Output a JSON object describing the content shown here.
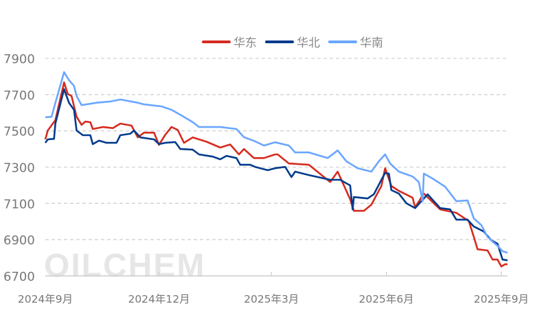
{
  "watermark": "OILCHEM",
  "chart_data": {
    "type": "line",
    "title": "",
    "xlabel": "",
    "ylabel": "",
    "ylim": [
      6700,
      7900
    ],
    "yticks": [
      6700,
      6900,
      7100,
      7300,
      7500,
      7700,
      7900
    ],
    "ytick_labels": [
      "6700",
      "6900",
      "7100",
      "7300",
      "7500",
      "7700",
      "7900"
    ],
    "xlim": [
      "2024-09-01",
      "2025-09-06"
    ],
    "xticks": [
      "2024-09-01",
      "2024-12-01",
      "2025-03-01",
      "2025-06-01",
      "2025-09-01"
    ],
    "xtick_labels": [
      "2024年9月",
      "2024年12月",
      "2025年3月",
      "2025年6月",
      "2025年9月"
    ],
    "grid": "horizontal dashed",
    "legend_position": "top-center",
    "series": [
      {
        "name": "华东",
        "color": "#d52b1e",
        "points": [
          [
            "2024-09-01",
            7453
          ],
          [
            "2024-09-03",
            7502
          ],
          [
            "2024-09-09",
            7559
          ],
          [
            "2024-09-16",
            7767
          ],
          [
            "2024-09-19",
            7703
          ],
          [
            "2024-09-22",
            7692
          ],
          [
            "2024-09-26",
            7578
          ],
          [
            "2024-09-30",
            7533
          ],
          [
            "2024-10-03",
            7551
          ],
          [
            "2024-10-07",
            7548
          ],
          [
            "2024-10-09",
            7510
          ],
          [
            "2024-10-17",
            7521
          ],
          [
            "2024-10-25",
            7515
          ],
          [
            "2024-10-31",
            7540
          ],
          [
            "2024-11-09",
            7529
          ],
          [
            "2024-11-14",
            7464
          ],
          [
            "2024-11-19",
            7490
          ],
          [
            "2024-11-27",
            7490
          ],
          [
            "2024-12-01",
            7423
          ],
          [
            "2024-12-06",
            7478
          ],
          [
            "2024-12-11",
            7521
          ],
          [
            "2024-12-16",
            7505
          ],
          [
            "2024-12-21",
            7434
          ],
          [
            "2024-12-28",
            7464
          ],
          [
            "2025-01-08",
            7440
          ],
          [
            "2025-01-19",
            7408
          ],
          [
            "2025-01-27",
            7425
          ],
          [
            "2025-02-03",
            7370
          ],
          [
            "2025-02-07",
            7400
          ],
          [
            "2025-02-15",
            7350
          ],
          [
            "2025-02-23",
            7350
          ],
          [
            "2025-03-04",
            7370
          ],
          [
            "2025-03-06",
            7370
          ],
          [
            "2025-03-15",
            7320
          ],
          [
            "2025-03-31",
            7313
          ],
          [
            "2025-04-17",
            7218
          ],
          [
            "2025-04-23",
            7275
          ],
          [
            "2025-05-03",
            7123
          ],
          [
            "2025-05-06",
            7059
          ],
          [
            "2025-05-14",
            7059
          ],
          [
            "2025-05-20",
            7093
          ],
          [
            "2025-05-28",
            7196
          ],
          [
            "2025-05-31",
            7294
          ],
          [
            "2025-06-05",
            7196
          ],
          [
            "2025-06-11",
            7169
          ],
          [
            "2025-06-22",
            7131
          ],
          [
            "2025-06-24",
            7078
          ],
          [
            "2025-07-01",
            7154
          ],
          [
            "2025-07-14",
            7067
          ],
          [
            "2025-07-27",
            7048
          ],
          [
            "2025-08-06",
            7002
          ],
          [
            "2025-08-10",
            6915
          ],
          [
            "2025-08-13",
            6847
          ],
          [
            "2025-08-21",
            6840
          ],
          [
            "2025-08-25",
            6790
          ],
          [
            "2025-08-29",
            6790
          ],
          [
            "2025-09-01",
            6752
          ],
          [
            "2025-09-04",
            6764
          ],
          [
            "2025-09-06",
            6764
          ]
        ]
      },
      {
        "name": "华北",
        "color": "#003a8c",
        "points": [
          [
            "2024-09-01",
            7434
          ],
          [
            "2024-09-03",
            7453
          ],
          [
            "2024-09-08",
            7456
          ],
          [
            "2024-09-09",
            7540
          ],
          [
            "2024-09-16",
            7730
          ],
          [
            "2024-09-20",
            7654
          ],
          [
            "2024-09-24",
            7616
          ],
          [
            "2024-09-26",
            7502
          ],
          [
            "2024-10-01",
            7476
          ],
          [
            "2024-10-07",
            7476
          ],
          [
            "2024-10-09",
            7427
          ],
          [
            "2024-10-14",
            7446
          ],
          [
            "2024-10-20",
            7434
          ],
          [
            "2024-10-28",
            7434
          ],
          [
            "2024-10-31",
            7476
          ],
          [
            "2024-11-08",
            7484
          ],
          [
            "2024-11-11",
            7502
          ],
          [
            "2024-11-16",
            7464
          ],
          [
            "2024-11-27",
            7453
          ],
          [
            "2024-12-01",
            7427
          ],
          [
            "2024-12-06",
            7434
          ],
          [
            "2024-12-14",
            7438
          ],
          [
            "2024-12-18",
            7400
          ],
          [
            "2024-12-28",
            7396
          ],
          [
            "2025-01-02",
            7370
          ],
          [
            "2025-01-13",
            7358
          ],
          [
            "2025-01-19",
            7343
          ],
          [
            "2025-01-24",
            7362
          ],
          [
            "2025-02-01",
            7350
          ],
          [
            "2025-02-04",
            7313
          ],
          [
            "2025-02-12",
            7313
          ],
          [
            "2025-02-16",
            7301
          ],
          [
            "2025-02-26",
            7283
          ],
          [
            "2025-03-04",
            7294
          ],
          [
            "2025-03-12",
            7301
          ],
          [
            "2025-03-17",
            7245
          ],
          [
            "2025-03-20",
            7275
          ],
          [
            "2025-03-31",
            7256
          ],
          [
            "2025-04-17",
            7230
          ],
          [
            "2025-04-25",
            7230
          ],
          [
            "2025-05-03",
            7199
          ],
          [
            "2025-05-05",
            7067
          ],
          [
            "2025-05-06",
            7135
          ],
          [
            "2025-05-17",
            7127
          ],
          [
            "2025-05-22",
            7150
          ],
          [
            "2025-05-28",
            7230
          ],
          [
            "2025-05-31",
            7268
          ],
          [
            "2025-06-03",
            7264
          ],
          [
            "2025-06-05",
            7173
          ],
          [
            "2025-06-11",
            7154
          ],
          [
            "2025-06-17",
            7101
          ],
          [
            "2025-06-24",
            7074
          ],
          [
            "2025-06-29",
            7112
          ],
          [
            "2025-07-04",
            7150
          ],
          [
            "2025-07-14",
            7074
          ],
          [
            "2025-07-22",
            7067
          ],
          [
            "2025-07-27",
            7010
          ],
          [
            "2025-08-05",
            7010
          ],
          [
            "2025-08-10",
            6972
          ],
          [
            "2025-08-18",
            6945
          ],
          [
            "2025-08-24",
            6896
          ],
          [
            "2025-08-29",
            6877
          ],
          [
            "2025-09-02",
            6790
          ],
          [
            "2025-09-06",
            6786
          ]
        ]
      },
      {
        "name": "华南",
        "color": "#6aa6ff",
        "points": [
          [
            "2024-09-01",
            7575
          ],
          [
            "2024-09-06",
            7578
          ],
          [
            "2024-09-09",
            7654
          ],
          [
            "2024-09-16",
            7824
          ],
          [
            "2024-09-20",
            7779
          ],
          [
            "2024-09-24",
            7748
          ],
          [
            "2024-09-26",
            7692
          ],
          [
            "2024-09-30",
            7642
          ],
          [
            "2024-10-12",
            7655
          ],
          [
            "2024-10-23",
            7662
          ],
          [
            "2024-10-31",
            7673
          ],
          [
            "2024-11-14",
            7655
          ],
          [
            "2024-11-19",
            7646
          ],
          [
            "2024-12-03",
            7635
          ],
          [
            "2024-12-11",
            7616
          ],
          [
            "2024-12-19",
            7585
          ],
          [
            "2024-12-28",
            7548
          ],
          [
            "2025-01-02",
            7521
          ],
          [
            "2025-01-19",
            7521
          ],
          [
            "2025-02-01",
            7510
          ],
          [
            "2025-02-07",
            7465
          ],
          [
            "2025-02-15",
            7445
          ],
          [
            "2025-02-23",
            7419
          ],
          [
            "2025-03-04",
            7437
          ],
          [
            "2025-03-15",
            7419
          ],
          [
            "2025-03-20",
            7381
          ],
          [
            "2025-03-31",
            7381
          ],
          [
            "2025-04-15",
            7350
          ],
          [
            "2025-04-23",
            7392
          ],
          [
            "2025-04-30",
            7332
          ],
          [
            "2025-05-09",
            7294
          ],
          [
            "2025-05-20",
            7275
          ],
          [
            "2025-05-26",
            7332
          ],
          [
            "2025-05-31",
            7370
          ],
          [
            "2025-06-04",
            7320
          ],
          [
            "2025-06-11",
            7275
          ],
          [
            "2025-06-22",
            7248
          ],
          [
            "2025-06-27",
            7218
          ],
          [
            "2025-06-30",
            7112
          ],
          [
            "2025-07-01",
            7264
          ],
          [
            "2025-07-08",
            7237
          ],
          [
            "2025-07-18",
            7192
          ],
          [
            "2025-07-27",
            7112
          ],
          [
            "2025-08-05",
            7116
          ],
          [
            "2025-08-10",
            7017
          ],
          [
            "2025-08-16",
            6980
          ],
          [
            "2025-08-21",
            6915
          ],
          [
            "2025-08-25",
            6889
          ],
          [
            "2025-08-29",
            6866
          ],
          [
            "2025-09-02",
            6836
          ],
          [
            "2025-09-06",
            6828
          ]
        ]
      }
    ]
  }
}
